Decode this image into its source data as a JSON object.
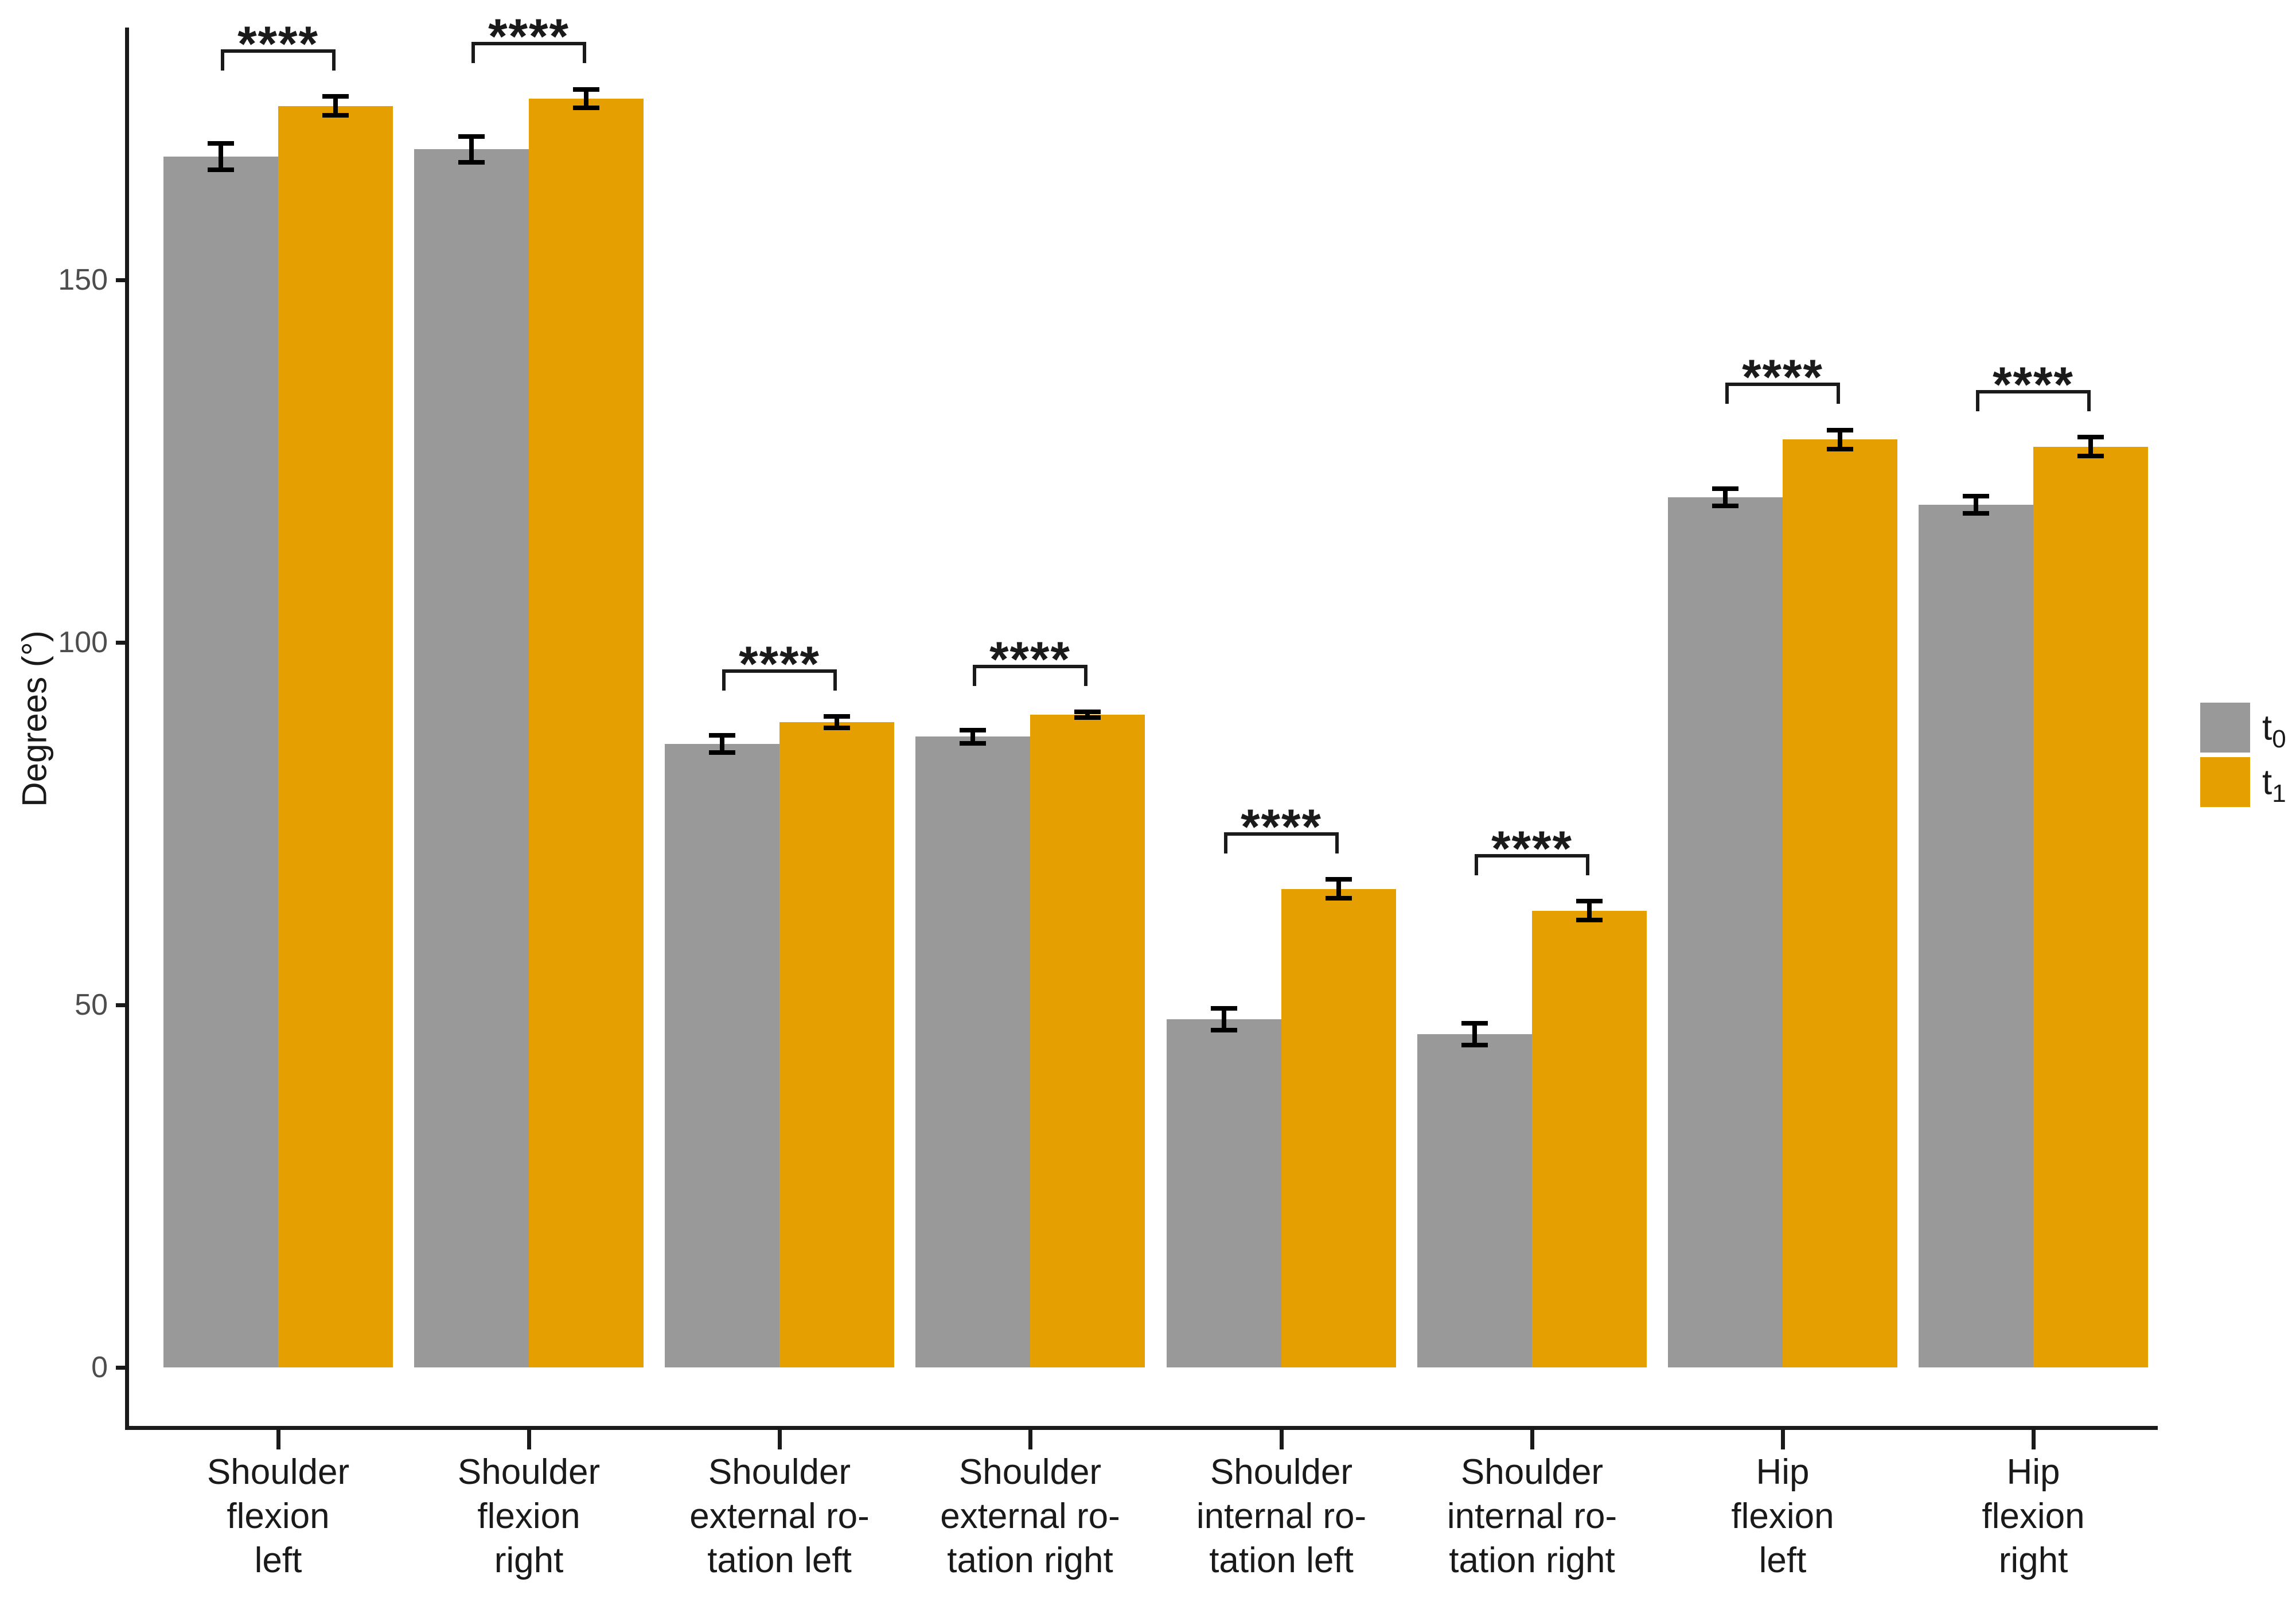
{
  "chart_data": {
    "type": "bar",
    "title": "",
    "ylabel": "Degrees (°)",
    "xlabel": "",
    "ylim": [
      0,
      185
    ],
    "yticks": [
      0,
      50,
      100,
      150
    ],
    "grid": false,
    "legend_position": "right",
    "categories": [
      {
        "label": "Shoulder flexion left",
        "lines": [
          "Shoulder",
          "flexion",
          "left"
        ]
      },
      {
        "label": "Shoulder flexion right",
        "lines": [
          "Shoulder",
          "flexion",
          "right"
        ]
      },
      {
        "label": "Shoulder external rotation left",
        "lines": [
          "Shoulder",
          "external ro-",
          "tation left"
        ]
      },
      {
        "label": "Shoulder external rotation right",
        "lines": [
          "Shoulder",
          "external ro-",
          "tation right"
        ]
      },
      {
        "label": "Shoulder internal rotation left",
        "lines": [
          "Shoulder",
          "internal ro-",
          "tation left"
        ]
      },
      {
        "label": "Shoulder internal rotation right",
        "lines": [
          "Shoulder",
          "internal ro-",
          "tation right"
        ]
      },
      {
        "label": "Hip flexion left",
        "lines": [
          "Hip",
          "flexion",
          "left"
        ]
      },
      {
        "label": "Hip flexion right",
        "lines": [
          "Hip",
          "flexion",
          "right"
        ]
      }
    ],
    "series": [
      {
        "name": "t0",
        "label_base": "t",
        "label_sub": "0",
        "color": "#999999",
        "values": [
          167,
          168,
          86,
          87,
          48,
          46,
          120,
          119
        ],
        "errors": [
          1.8,
          1.8,
          1.2,
          0.9,
          1.5,
          1.5,
          1.2,
          1.2
        ]
      },
      {
        "name": "t1",
        "label_base": "t",
        "label_sub": "1",
        "color": "#E69F00",
        "values": [
          174,
          175,
          89,
          90,
          66,
          63,
          128,
          127
        ],
        "errors": [
          1.3,
          1.3,
          0.8,
          0.4,
          1.3,
          1.3,
          1.3,
          1.3
        ]
      }
    ],
    "significance_labels": [
      "****",
      "****",
      "****",
      "****",
      "****",
      "****",
      "****",
      "****"
    ],
    "colors": {
      "axis": "#1a1a1a",
      "tick_label": "#4d4d4d",
      "error_bar": "#000000",
      "bracket": "#1a1a1a",
      "background": "#ffffff"
    }
  }
}
